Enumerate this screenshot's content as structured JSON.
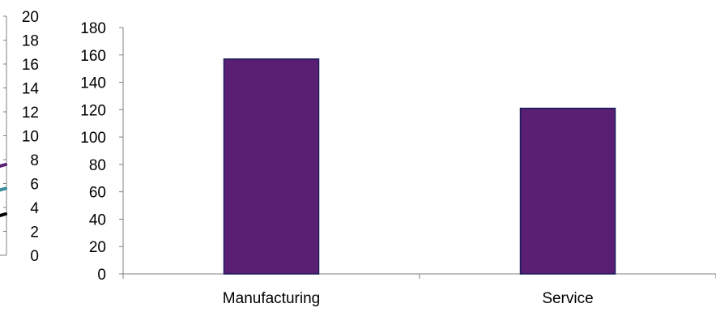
{
  "chart_data": [
    {
      "type": "line",
      "title": "",
      "xlabel": "",
      "ylabel": "",
      "ylim": [
        0,
        20
      ],
      "yticks": [
        0,
        2,
        4,
        6,
        8,
        10,
        12,
        14,
        16,
        18,
        20
      ],
      "series_colors": [
        "#5a1f73",
        "#3a8c9c",
        "#000000"
      ],
      "note": "partially cropped chart at left edge; only tick labels and line stubs visible"
    },
    {
      "type": "bar",
      "title": "",
      "xlabel": "",
      "ylabel": "",
      "categories": [
        "Manufacturing",
        "Service"
      ],
      "values": [
        157,
        121
      ],
      "ylim": [
        0,
        180
      ],
      "yticks": [
        0,
        20,
        40,
        60,
        80,
        100,
        120,
        140,
        160,
        180
      ],
      "grid": false,
      "bar_color": "#5a1f73",
      "bar_edge_color": "#1b1b5e"
    }
  ]
}
